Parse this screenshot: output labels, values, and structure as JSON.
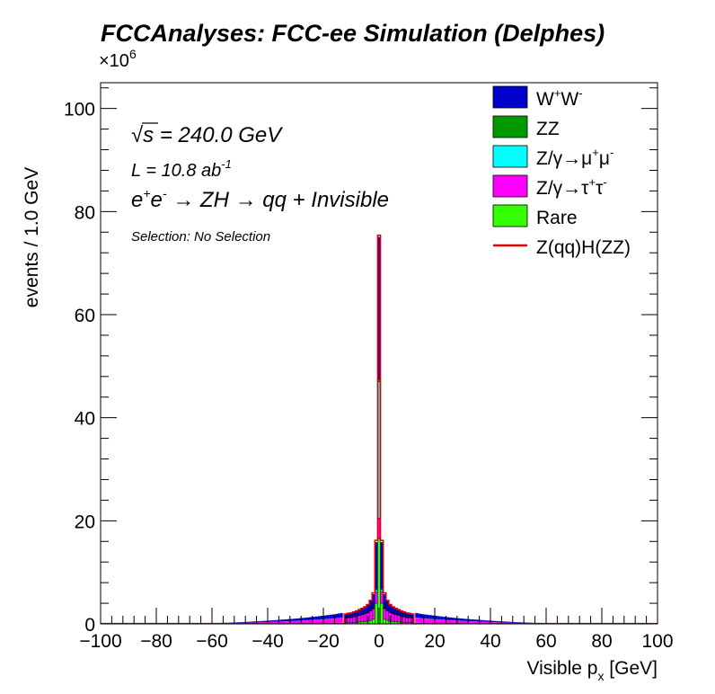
{
  "chart_data": {
    "type": "bar",
    "stacked": true,
    "histogram": true,
    "title": "FCCAnalyses: FCC-ee Simulation (Delphes)",
    "xlabel": "Visible p",
    "xlabel_sub": "x",
    "xlabel_unit": " [GeV]",
    "ylabel": "events / 1.0 GeV",
    "y_multiplier_base": "×10",
    "y_multiplier_exp": "6",
    "xlim": [
      -100,
      100
    ],
    "ylim": [
      0,
      105
    ],
    "xticks": [
      -100,
      -80,
      -60,
      -40,
      -20,
      0,
      20,
      40,
      60,
      80,
      100
    ],
    "yticks": [
      0,
      20,
      40,
      60,
      80,
      100
    ],
    "grid": false,
    "legend_position": "top-right",
    "annotations": {
      "sqrt_symbol": "√",
      "sqrt_s": "s",
      "energy": " = 240.0 GeV",
      "lumi_prefix": "L = 10.8 ab",
      "lumi_exp": "-1",
      "process_e": "e",
      "process_e_plus": "+",
      "process_e_minus": "-",
      "process_arrow1": " → ZH ",
      "process_arrow2": "→ qq + Invisible",
      "selection": "Selection: No Selection"
    },
    "legend": [
      {
        "name": "W⁺W⁻",
        "main": "W",
        "sup1": "+",
        "mid": "W",
        "sup2": "-",
        "color": "#0000cc",
        "kind": "box"
      },
      {
        "name": "ZZ",
        "main": "ZZ",
        "color": "#009900",
        "kind": "box"
      },
      {
        "name": "Z/γ→μ⁺μ⁻",
        "main": "Z/γ→μ",
        "sup1": "+",
        "mid": "μ",
        "sup2": "-",
        "color": "#00ffff",
        "kind": "box"
      },
      {
        "name": "Z/γ→τ⁺τ⁻",
        "main": "Z/γ→τ",
        "sup1": "+",
        "mid": "τ",
        "sup2": "-",
        "color": "#ff00ff",
        "kind": "box"
      },
      {
        "name": "Rare",
        "main": "Rare",
        "color": "#33ff00",
        "kind": "box"
      },
      {
        "name": "Z(qq)H(ZZ)",
        "main": "Z(qq)H(ZZ)",
        "color": "#dd0000",
        "kind": "line"
      }
    ],
    "bin_width": 1.0,
    "bins_x": [
      -12,
      -11,
      -10,
      -9,
      -8,
      -7,
      -6,
      -5,
      -4,
      -3,
      -2,
      -1,
      0,
      1,
      2,
      3,
      4,
      5,
      6,
      7,
      8,
      9,
      10,
      11,
      12
    ],
    "series": [
      {
        "name": "Rare",
        "color": "#33ff00",
        "values": [
          0.2,
          0.2,
          0.2,
          0.25,
          0.3,
          0.35,
          0.4,
          0.45,
          0.55,
          0.7,
          0.9,
          4.0,
          16.5,
          4.0,
          0.9,
          0.7,
          0.55,
          0.45,
          0.4,
          0.35,
          0.3,
          0.25,
          0.2,
          0.2,
          0.2
        ]
      },
      {
        "name": "Z/γ→τ⁺τ⁻",
        "color": "#ff00ff",
        "values": [
          0.9,
          1.0,
          1.0,
          1.1,
          1.2,
          1.3,
          1.4,
          1.5,
          1.6,
          1.8,
          2.0,
          2.2,
          4.0,
          2.2,
          2.0,
          1.8,
          1.6,
          1.5,
          1.4,
          1.3,
          1.2,
          1.1,
          1.0,
          1.0,
          0.9
        ]
      },
      {
        "name": "Z/γ→μ⁺μ⁻",
        "color": "#00ffff",
        "values": [
          0.0,
          0.0,
          0.0,
          0.0,
          0.0,
          0.0,
          0.0,
          0.0,
          0.0,
          0.05,
          0.1,
          0.4,
          26.5,
          0.4,
          0.1,
          0.05,
          0.0,
          0.0,
          0.0,
          0.0,
          0.0,
          0.0,
          0.0,
          0.0,
          0.0
        ]
      },
      {
        "name": "ZZ",
        "color": "#009900",
        "values": [
          0.05,
          0.05,
          0.05,
          0.05,
          0.05,
          0.05,
          0.05,
          0.05,
          0.1,
          0.1,
          0.1,
          0.2,
          0.5,
          0.2,
          0.1,
          0.1,
          0.1,
          0.05,
          0.05,
          0.05,
          0.05,
          0.05,
          0.05,
          0.05,
          0.05
        ]
      },
      {
        "name": "W⁺W⁻",
        "color": "#0000cc",
        "values": [
          0.7,
          0.75,
          0.8,
          0.85,
          0.9,
          1.0,
          1.1,
          1.2,
          1.4,
          1.8,
          2.6,
          9.0,
          27.5,
          9.0,
          2.6,
          1.8,
          1.4,
          1.2,
          1.1,
          1.0,
          0.9,
          0.85,
          0.8,
          0.75,
          0.7
        ]
      },
      {
        "name": "Z(qq)H(ZZ)",
        "color": "#dd0000",
        "values": [
          0.05,
          0.05,
          0.05,
          0.05,
          0.05,
          0.05,
          0.05,
          0.1,
          0.1,
          0.1,
          0.3,
          0.4,
          0.4,
          0.4,
          0.3,
          0.1,
          0.1,
          0.1,
          0.05,
          0.05,
          0.05,
          0.05,
          0.05,
          0.05,
          0.05
        ]
      }
    ],
    "tails": [
      {
        "x": 13,
        "total": 2.1
      },
      {
        "x": 15,
        "total": 1.9
      },
      {
        "x": 18,
        "total": 1.7
      },
      {
        "x": 21,
        "total": 1.5
      },
      {
        "x": 25,
        "total": 1.25
      },
      {
        "x": 30,
        "total": 1.0
      },
      {
        "x": 35,
        "total": 0.8
      },
      {
        "x": 40,
        "total": 0.6
      },
      {
        "x": 45,
        "total": 0.45
      },
      {
        "x": 50,
        "total": 0.3
      },
      {
        "x": 55,
        "total": 0.2
      },
      {
        "x": 60,
        "total": 0.15
      },
      {
        "x": 70,
        "total": 0.07
      },
      {
        "x": 100,
        "total": 0.03
      }
    ],
    "tail_fractions": {
      "Rare": 0.1,
      "Z/γ→τ⁺τ⁻": 0.45,
      "ZZ": 0.03,
      "W⁺W⁻": 0.42
    }
  }
}
